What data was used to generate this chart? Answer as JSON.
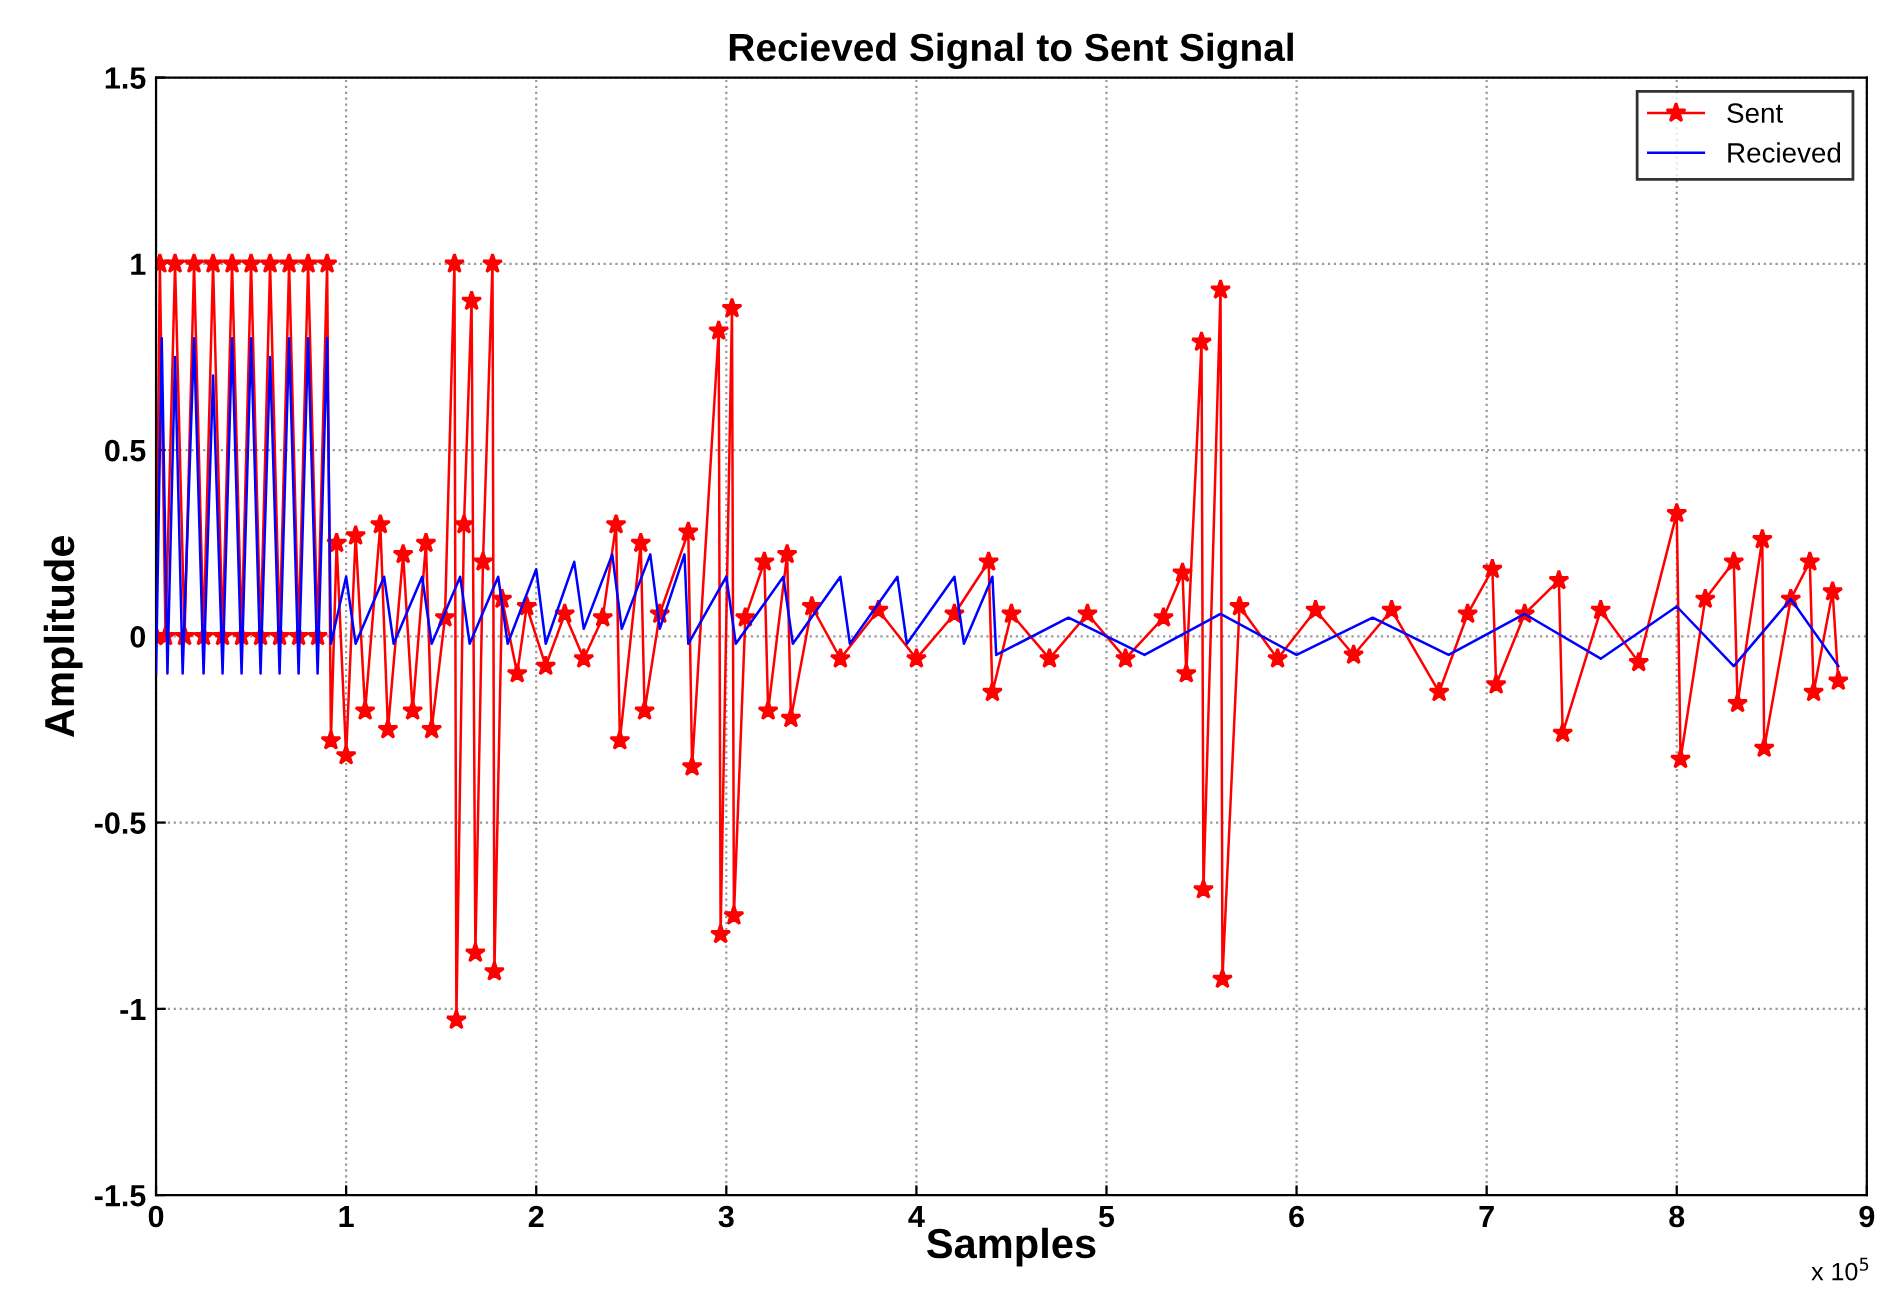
{
  "chart_data": {
    "type": "line",
    "title": "Recieved Signal to Sent Signal",
    "xlabel": "Samples",
    "ylabel": "Amplitude",
    "annotations": [
      "x 10$^{5}$"
    ],
    "xlim": [
      0,
      9
    ],
    "xticks": [
      0,
      1,
      2,
      3,
      4,
      5,
      6,
      7,
      8,
      9
    ],
    "ylim": [
      -1.5,
      1.5
    ],
    "yticks": [
      -1.5,
      -1,
      -0.5,
      0,
      0.5,
      1,
      1.5
    ],
    "grid": true,
    "legend": "top right",
    "series": [
      {
        "name": "Sent",
        "color": "#ff0000",
        "marker": "star",
        "x": [
          0,
          0.02,
          0.05,
          0.1,
          0.15,
          0.2,
          0.25,
          0.3,
          0.35,
          0.4,
          0.45,
          0.5,
          0.55,
          0.6,
          0.65,
          0.7,
          0.75,
          0.8,
          0.85,
          0.9,
          0.92,
          0.95,
          1.0,
          1.05,
          1.1,
          1.18,
          1.22,
          1.3,
          1.35,
          1.42,
          1.45,
          1.52,
          1.57,
          1.58,
          1.62,
          1.66,
          1.68,
          1.72,
          1.77,
          1.78,
          1.82,
          1.9,
          1.95,
          2.05,
          2.15,
          2.25,
          2.35,
          2.42,
          2.44,
          2.55,
          2.57,
          2.65,
          2.8,
          2.82,
          2.96,
          2.97,
          3.03,
          3.04,
          3.1,
          3.2,
          3.22,
          3.32,
          3.34,
          3.45,
          3.6,
          3.8,
          4.0,
          4.2,
          4.38,
          4.4,
          4.5,
          4.7,
          4.9,
          5.1,
          5.3,
          5.4,
          5.42,
          5.5,
          5.51,
          5.6,
          5.61,
          5.7,
          5.9,
          6.1,
          6.3,
          6.5,
          6.75,
          6.9,
          7.03,
          7.05,
          7.2,
          7.38,
          7.4,
          7.6,
          7.8,
          8.0,
          8.02,
          8.15,
          8.3,
          8.32,
          8.45,
          8.46,
          8.6,
          8.7,
          8.72,
          8.82,
          8.85
        ],
        "values": [
          0,
          1,
          0,
          1,
          0,
          1,
          0,
          1,
          0,
          1,
          0,
          1,
          0,
          1,
          0,
          1,
          0,
          1,
          0,
          1,
          -0.28,
          0.25,
          -0.32,
          0.27,
          -0.2,
          0.3,
          -0.25,
          0.22,
          -0.2,
          0.25,
          -0.25,
          0.05,
          1.0,
          -1.03,
          0.3,
          0.9,
          -0.85,
          0.2,
          1.0,
          -0.9,
          0.1,
          -0.1,
          0.08,
          -0.08,
          0.06,
          -0.06,
          0.05,
          0.3,
          -0.28,
          0.25,
          -0.2,
          0.06,
          0.28,
          -0.35,
          0.82,
          -0.8,
          0.88,
          -0.75,
          0.05,
          0.2,
          -0.2,
          0.22,
          -0.22,
          0.08,
          -0.06,
          0.07,
          -0.06,
          0.06,
          0.2,
          -0.15,
          0.06,
          -0.06,
          0.06,
          -0.06,
          0.05,
          0.17,
          -0.1,
          0.79,
          -0.68,
          0.93,
          -0.92,
          0.08,
          -0.06,
          0.07,
          -0.05,
          0.07,
          -0.15,
          0.06,
          0.18,
          -0.13,
          0.06,
          0.15,
          -0.26,
          0.07,
          -0.07,
          0.33,
          -0.33,
          0.1,
          0.2,
          -0.18,
          0.26,
          -0.3,
          0.1,
          0.2,
          -0.15,
          0.12,
          -0.12
        ]
      },
      {
        "name": "Recieved",
        "color": "#0000ff",
        "x": [
          0,
          0.03,
          0.06,
          0.1,
          0.14,
          0.2,
          0.25,
          0.3,
          0.35,
          0.4,
          0.45,
          0.5,
          0.55,
          0.6,
          0.65,
          0.7,
          0.75,
          0.8,
          0.85,
          0.9,
          0.92,
          1.0,
          1.05,
          1.2,
          1.25,
          1.4,
          1.45,
          1.6,
          1.65,
          1.8,
          1.85,
          2.0,
          2.05,
          2.2,
          2.25,
          2.4,
          2.45,
          2.6,
          2.65,
          2.78,
          2.8,
          3.0,
          3.05,
          3.3,
          3.35,
          3.6,
          3.65,
          3.9,
          3.95,
          4.2,
          4.25,
          4.4,
          4.42,
          4.8,
          5.2,
          5.6,
          6.0,
          6.4,
          6.8,
          7.2,
          7.6,
          8.0,
          8.3,
          8.6,
          8.85
        ],
        "values": [
          -0.1,
          0.8,
          -0.1,
          0.75,
          -0.1,
          0.8,
          -0.1,
          0.7,
          -0.1,
          0.8,
          -0.1,
          0.8,
          -0.1,
          0.75,
          -0.1,
          0.8,
          -0.1,
          0.8,
          -0.1,
          0.8,
          -0.02,
          0.16,
          -0.02,
          0.16,
          -0.02,
          0.16,
          -0.02,
          0.16,
          -0.02,
          0.16,
          -0.02,
          0.18,
          -0.02,
          0.2,
          0.02,
          0.22,
          0.02,
          0.22,
          0.02,
          0.22,
          -0.02,
          0.16,
          -0.02,
          0.16,
          -0.02,
          0.16,
          -0.02,
          0.16,
          -0.02,
          0.16,
          -0.02,
          0.16,
          -0.05,
          0.05,
          -0.05,
          0.06,
          -0.05,
          0.05,
          -0.05,
          0.06,
          -0.06,
          0.08,
          -0.08,
          0.1,
          -0.08
        ]
      }
    ]
  }
}
